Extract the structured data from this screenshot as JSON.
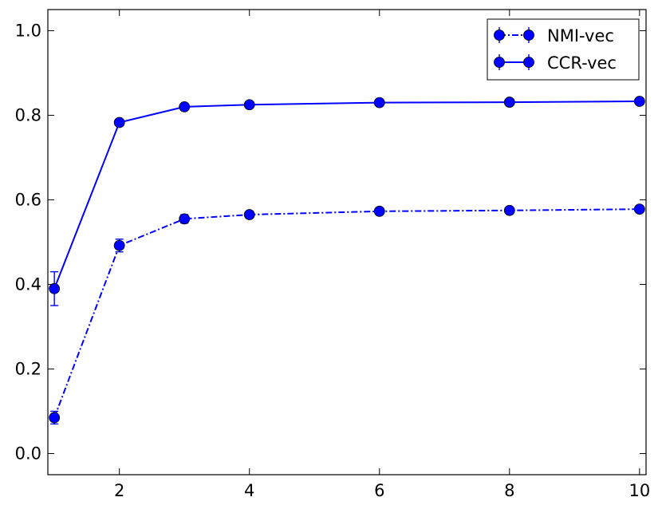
{
  "chart_data": {
    "type": "line",
    "title": "",
    "xlabel": "",
    "ylabel": "",
    "xlim": [
      0.9,
      10.1
    ],
    "ylim": [
      -0.05,
      1.05
    ],
    "x": [
      1,
      2,
      3,
      4,
      6,
      8,
      10
    ],
    "x_ticks": [
      "2",
      "4",
      "6",
      "8",
      "10"
    ],
    "y_ticks": [
      "0.0",
      "0.2",
      "0.4",
      "0.6",
      "0.8",
      "1.0"
    ],
    "grid": false,
    "legend_position": "top-right",
    "series": [
      {
        "name": "NMI-vec",
        "line_style": "dash-dot",
        "marker": "circle",
        "color": "#0000ff",
        "values": [
          0.085,
          0.492,
          0.555,
          0.565,
          0.573,
          0.575,
          0.578
        ],
        "errors": [
          0.015,
          0.015,
          0.01,
          0.008,
          0.007,
          0.006,
          0.006
        ]
      },
      {
        "name": "CCR-vec",
        "line_style": "solid",
        "marker": "circle",
        "color": "#0000ff",
        "values": [
          0.39,
          0.783,
          0.82,
          0.825,
          0.83,
          0.831,
          0.833
        ],
        "errors": [
          0.04,
          0.008,
          0.006,
          0.005,
          0.004,
          0.004,
          0.004
        ]
      }
    ]
  }
}
